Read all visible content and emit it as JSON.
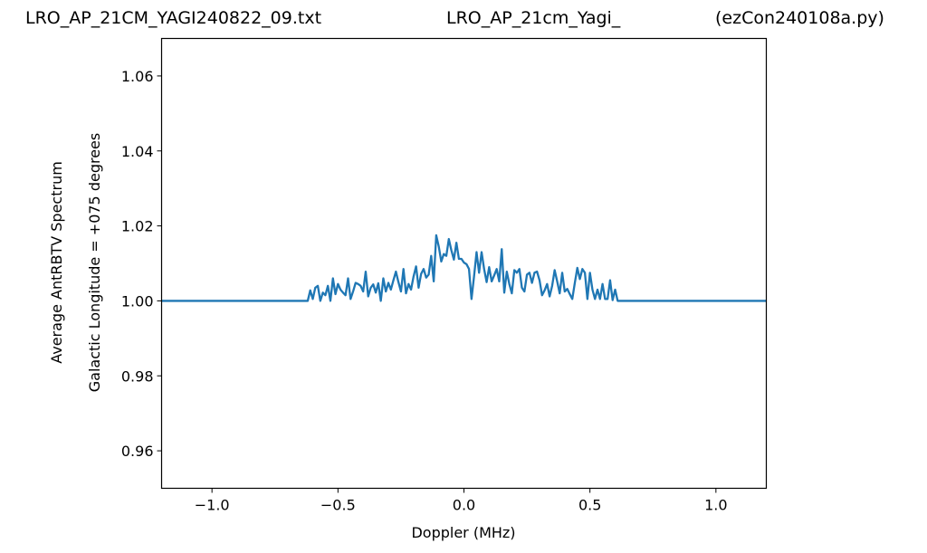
{
  "header": {
    "left": "LRO_AP_21CM_YAGI240822_09.txt",
    "center": "LRO_AP_21cm_Yagi_",
    "right": "(ezCon240108a.py)"
  },
  "chart_data": {
    "type": "line",
    "xlabel": "Doppler (MHz)",
    "ylabel_line1": "Average AntRBTV Spectrum",
    "ylabel_line2": "Galactic Longitude = +075 degrees",
    "xlim": [
      -1.2,
      1.2
    ],
    "ylim": [
      0.95,
      1.07
    ],
    "x_ticks": [
      -1.0,
      -0.5,
      0.0,
      0.5,
      1.0
    ],
    "x_tick_labels": [
      "−1.0",
      "−0.5",
      "0.0",
      "0.5",
      "1.0"
    ],
    "y_ticks": [
      0.96,
      0.98,
      1.0,
      1.02,
      1.04,
      1.06
    ],
    "y_tick_labels": [
      "0.96",
      "0.98",
      "1.00",
      "1.02",
      "1.04",
      "1.06"
    ],
    "line_color": "#1f77b4",
    "grid": false,
    "series": [
      {
        "x": [
          -1.2,
          -0.62,
          -0.61,
          -0.6,
          -0.59,
          -0.58,
          -0.57,
          -0.56,
          -0.55,
          -0.54,
          -0.53,
          -0.52,
          -0.51,
          -0.5,
          -0.49,
          -0.48,
          -0.47,
          -0.46,
          -0.45,
          -0.44,
          -0.43,
          -0.42,
          -0.41,
          -0.4,
          -0.39,
          -0.38,
          -0.37,
          -0.36,
          -0.35,
          -0.34,
          -0.33,
          -0.32,
          -0.31,
          -0.3,
          -0.29,
          -0.28,
          -0.27,
          -0.26,
          -0.25,
          -0.24,
          -0.23,
          -0.22,
          -0.21,
          -0.2,
          -0.19,
          -0.18,
          -0.17,
          -0.16,
          -0.15,
          -0.14,
          -0.13,
          -0.12,
          -0.11,
          -0.1,
          -0.09,
          -0.08,
          -0.07,
          -0.06,
          -0.05,
          -0.04,
          -0.03,
          -0.02,
          -0.01,
          0.0,
          0.01,
          0.02,
          0.03,
          0.04,
          0.05,
          0.06,
          0.07,
          0.08,
          0.09,
          0.1,
          0.11,
          0.12,
          0.13,
          0.14,
          0.15,
          0.16,
          0.17,
          0.18,
          0.19,
          0.2,
          0.21,
          0.22,
          0.23,
          0.24,
          0.25,
          0.26,
          0.27,
          0.28,
          0.29,
          0.3,
          0.31,
          0.32,
          0.33,
          0.34,
          0.35,
          0.36,
          0.37,
          0.38,
          0.39,
          0.4,
          0.41,
          0.42,
          0.43,
          0.44,
          0.45,
          0.46,
          0.47,
          0.48,
          0.49,
          0.5,
          0.51,
          0.52,
          0.53,
          0.54,
          0.55,
          0.56,
          0.57,
          0.58,
          0.59,
          0.6,
          0.61,
          1.2
        ],
        "y": [
          1.0,
          1.0,
          1.0028,
          1.0005,
          1.0035,
          1.004,
          1.0,
          1.0022,
          1.0015,
          1.004,
          1.0,
          1.006,
          1.0018,
          1.0045,
          1.003,
          1.0022,
          1.0015,
          1.006,
          1.0005,
          1.0025,
          1.0048,
          1.0045,
          1.004,
          1.0025,
          1.0078,
          1.0012,
          1.0035,
          1.0044,
          1.0022,
          1.0047,
          1.0,
          1.006,
          1.0025,
          1.0048,
          1.003,
          1.0055,
          1.0078,
          1.005,
          1.0025,
          1.0085,
          1.002,
          1.0045,
          1.003,
          1.0065,
          1.0092,
          1.0035,
          1.0072,
          1.0085,
          1.0062,
          1.007,
          1.012,
          1.0052,
          1.0175,
          1.0145,
          1.0105,
          1.0125,
          1.012,
          1.0165,
          1.0135,
          1.011,
          1.0155,
          1.0112,
          1.0112,
          1.0102,
          1.0098,
          1.0085,
          1.0005,
          1.0065,
          1.013,
          1.0075,
          1.013,
          1.0085,
          1.005,
          1.009,
          1.0052,
          1.0068,
          1.0085,
          1.0052,
          1.0138,
          1.0022,
          1.0078,
          1.0045,
          1.002,
          1.0082,
          1.0075,
          1.0085,
          1.0035,
          1.0025,
          1.007,
          1.0075,
          1.0048,
          1.0075,
          1.0078,
          1.0055,
          1.0015,
          1.0028,
          1.0045,
          1.0012,
          1.004,
          1.0082,
          1.0052,
          1.002,
          1.0075,
          1.0025,
          1.0032,
          1.0018,
          1.0005,
          1.0048,
          1.0088,
          1.0058,
          1.0085,
          1.0075,
          1.0005,
          1.0075,
          1.003,
          1.0005,
          1.003,
          1.0005,
          1.0045,
          1.0005,
          1.0005,
          1.0055,
          1.0002,
          1.003,
          1.0,
          1.0
        ]
      }
    ]
  }
}
